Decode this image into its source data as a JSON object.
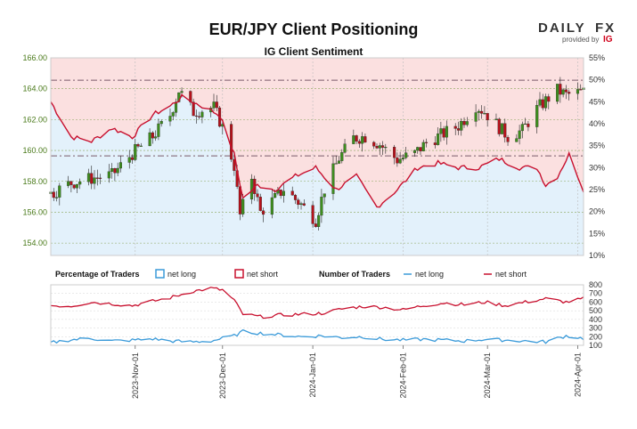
{
  "header": {
    "title": "EUR/JPY Client Positioning",
    "subtitle": "IG Client Sentiment"
  },
  "brand": {
    "name_left": "DAILY",
    "name_right": "FX",
    "provided_by": "provided by",
    "ig": "IG"
  },
  "legend": {
    "percentage_heading": "Percentage of Traders",
    "number_heading": "Number of Traders",
    "net_long": "net long",
    "net_short": "net short"
  },
  "colors": {
    "long": "#3a9ad9",
    "short": "#c8102e",
    "candle_up": "#3e8e1e",
    "candle_down": "#b5121b",
    "short_zone": "#fbe0e0",
    "long_zone": "#e3f1fb",
    "ref_line": "#7a5a6a"
  },
  "chart_data": [
    {
      "type": "candlestick",
      "title": "EUR/JPY Client Positioning",
      "subtitle": "IG Client Sentiment",
      "x_range": [
        "2023-10-03",
        "2024-04-03"
      ],
      "ylim": [
        153.2,
        166.0
      ],
      "y_ticks": [
        "154.00",
        "156.00",
        "158.00",
        "160.00",
        "162.00",
        "164.00",
        "166.00"
      ],
      "y2lim": [
        10,
        55
      ],
      "y2_ticks": [
        "10%",
        "15%",
        "20%",
        "25%",
        "30%",
        "35%",
        "40%",
        "45%",
        "50%",
        "55%"
      ],
      "x_ticks": [
        "2023-Nov-01",
        "2023-Dec-01",
        "2024-Jan-01",
        "2024-Feb-01",
        "2024-Mar-01",
        "2024-Apr-01"
      ],
      "reference_lines": [
        164.55,
        159.65
      ],
      "price_anchors": [
        [
          "2023-10-03",
          157.2
        ],
        [
          "2023-10-10",
          157.9
        ],
        [
          "2023-10-17",
          158.2
        ],
        [
          "2023-10-24",
          158.4
        ],
        [
          "2023-10-31",
          159.8
        ],
        [
          "2023-11-07",
          160.9
        ],
        [
          "2023-11-13",
          162.3
        ],
        [
          "2023-11-16",
          163.9
        ],
        [
          "2023-11-21",
          162.5
        ],
        [
          "2023-11-28",
          162.8
        ],
        [
          "2023-12-01",
          161.5
        ],
        [
          "2023-12-05",
          159.0
        ],
        [
          "2023-12-07",
          155.8
        ],
        [
          "2023-12-11",
          158.3
        ],
        [
          "2023-12-14",
          156.0
        ],
        [
          "2023-12-19",
          156.9
        ],
        [
          "2023-12-22",
          157.5
        ],
        [
          "2023-12-28",
          156.5
        ],
        [
          "2024-01-02",
          155.5
        ],
        [
          "2024-01-05",
          157.5
        ],
        [
          "2024-01-10",
          159.5
        ],
        [
          "2024-01-15",
          160.8
        ],
        [
          "2024-01-19",
          160.9
        ],
        [
          "2024-01-24",
          160.4
        ],
        [
          "2024-01-30",
          159.4
        ],
        [
          "2024-02-05",
          159.8
        ],
        [
          "2024-02-09",
          160.5
        ],
        [
          "2024-02-14",
          161.0
        ],
        [
          "2024-02-20",
          161.6
        ],
        [
          "2024-02-26",
          162.9
        ],
        [
          "2024-02-29",
          162.5
        ],
        [
          "2024-03-05",
          161.5
        ],
        [
          "2024-03-08",
          160.9
        ],
        [
          "2024-03-13",
          161.3
        ],
        [
          "2024-03-18",
          162.7
        ],
        [
          "2024-03-22",
          163.4
        ],
        [
          "2024-03-25",
          163.9
        ],
        [
          "2024-03-28",
          163.6
        ],
        [
          "2024-04-03",
          163.8
        ]
      ],
      "net_long_pct_anchors": [
        [
          "2023-10-03",
          45
        ],
        [
          "2023-10-10",
          37
        ],
        [
          "2023-10-17",
          36
        ],
        [
          "2023-10-24",
          39
        ],
        [
          "2023-10-31",
          37
        ],
        [
          "2023-11-07",
          42
        ],
        [
          "2023-11-13",
          44
        ],
        [
          "2023-11-17",
          46
        ],
        [
          "2023-11-24",
          44
        ],
        [
          "2023-11-30",
          42
        ],
        [
          "2023-12-05",
          33
        ],
        [
          "2023-12-08",
          23
        ],
        [
          "2023-12-13",
          26
        ],
        [
          "2023-12-19",
          25
        ],
        [
          "2023-12-26",
          28
        ],
        [
          "2024-01-02",
          30
        ],
        [
          "2024-01-09",
          25
        ],
        [
          "2024-01-16",
          28
        ],
        [
          "2024-01-23",
          21
        ],
        [
          "2024-01-30",
          25
        ],
        [
          "2024-02-06",
          30
        ],
        [
          "2024-02-13",
          31
        ],
        [
          "2024-02-20",
          30
        ],
        [
          "2024-02-27",
          30
        ],
        [
          "2024-03-05",
          32
        ],
        [
          "2024-03-12",
          30
        ],
        [
          "2024-03-18",
          30
        ],
        [
          "2024-03-21",
          26
        ],
        [
          "2024-03-25",
          28
        ],
        [
          "2024-03-29",
          33
        ],
        [
          "2024-04-03",
          25
        ]
      ],
      "net_short_pct_anchors": [
        [
          "2023-10-03",
          55
        ],
        [
          "2023-10-10",
          63
        ],
        [
          "2023-10-17",
          64
        ],
        [
          "2023-10-24",
          61
        ],
        [
          "2023-10-31",
          63
        ],
        [
          "2023-11-07",
          58
        ],
        [
          "2023-11-13",
          56
        ],
        [
          "2023-11-17",
          54
        ],
        [
          "2023-11-24",
          56
        ],
        [
          "2023-11-30",
          58
        ],
        [
          "2023-12-05",
          67
        ],
        [
          "2023-12-08",
          77
        ],
        [
          "2023-12-13",
          74
        ],
        [
          "2023-12-19",
          75
        ],
        [
          "2023-12-26",
          72
        ],
        [
          "2024-01-02",
          70
        ],
        [
          "2024-01-09",
          75
        ],
        [
          "2024-01-16",
          72
        ],
        [
          "2024-01-23",
          79
        ],
        [
          "2024-01-30",
          75
        ],
        [
          "2024-02-06",
          70
        ],
        [
          "2024-02-13",
          69
        ],
        [
          "2024-02-20",
          70
        ],
        [
          "2024-02-27",
          70
        ],
        [
          "2024-03-05",
          68
        ],
        [
          "2024-03-12",
          70
        ],
        [
          "2024-03-18",
          70
        ],
        [
          "2024-03-21",
          74
        ],
        [
          "2024-03-25",
          72
        ],
        [
          "2024-03-29",
          67
        ],
        [
          "2024-04-03",
          75
        ]
      ]
    },
    {
      "type": "line",
      "title": "Number of Traders",
      "x_range": [
        "2023-10-03",
        "2024-04-03"
      ],
      "ylim": [
        100,
        800
      ],
      "y_ticks": [
        "100",
        "200",
        "300",
        "400",
        "500",
        "600",
        "700",
        "800"
      ],
      "series": [
        {
          "name": "net short",
          "anchors": [
            [
              "2023-10-03",
              560
            ],
            [
              "2023-10-10",
              555
            ],
            [
              "2023-10-17",
              600
            ],
            [
              "2023-10-24",
              580
            ],
            [
              "2023-10-31",
              560
            ],
            [
              "2023-11-07",
              610
            ],
            [
              "2023-11-13",
              650
            ],
            [
              "2023-11-20",
              720
            ],
            [
              "2023-11-27",
              760
            ],
            [
              "2023-12-01",
              740
            ],
            [
              "2023-12-05",
              620
            ],
            [
              "2023-12-08",
              460
            ],
            [
              "2023-12-14",
              430
            ],
            [
              "2023-12-21",
              450
            ],
            [
              "2023-12-28",
              460
            ],
            [
              "2024-01-04",
              470
            ],
            [
              "2024-01-11",
              520
            ],
            [
              "2024-01-18",
              550
            ],
            [
              "2024-01-25",
              540
            ],
            [
              "2024-02-01",
              510
            ],
            [
              "2024-02-08",
              560
            ],
            [
              "2024-02-15",
              590
            ],
            [
              "2024-02-22",
              570
            ],
            [
              "2024-02-29",
              600
            ],
            [
              "2024-03-07",
              560
            ],
            [
              "2024-03-14",
              600
            ],
            [
              "2024-03-21",
              640
            ],
            [
              "2024-03-28",
              600
            ],
            [
              "2024-04-03",
              640
            ]
          ]
        },
        {
          "name": "net long",
          "anchors": [
            [
              "2023-10-03",
              130
            ],
            [
              "2023-10-10",
              165
            ],
            [
              "2023-10-17",
              180
            ],
            [
              "2023-10-24",
              150
            ],
            [
              "2023-10-31",
              160
            ],
            [
              "2023-11-07",
              175
            ],
            [
              "2023-11-13",
              150
            ],
            [
              "2023-11-20",
              140
            ],
            [
              "2023-11-27",
              150
            ],
            [
              "2023-12-01",
              180
            ],
            [
              "2023-12-05",
              210
            ],
            [
              "2023-12-08",
              260
            ],
            [
              "2023-12-14",
              240
            ],
            [
              "2023-12-21",
              220
            ],
            [
              "2023-12-28",
              200
            ],
            [
              "2024-01-04",
              210
            ],
            [
              "2024-01-11",
              190
            ],
            [
              "2024-01-18",
              200
            ],
            [
              "2024-01-25",
              170
            ],
            [
              "2024-02-01",
              160
            ],
            [
              "2024-02-08",
              170
            ],
            [
              "2024-02-15",
              160
            ],
            [
              "2024-02-22",
              150
            ],
            [
              "2024-02-29",
              170
            ],
            [
              "2024-03-07",
              160
            ],
            [
              "2024-03-14",
              150
            ],
            [
              "2024-03-21",
              140
            ],
            [
              "2024-03-28",
              210
            ],
            [
              "2024-04-03",
              180
            ]
          ]
        }
      ]
    }
  ]
}
